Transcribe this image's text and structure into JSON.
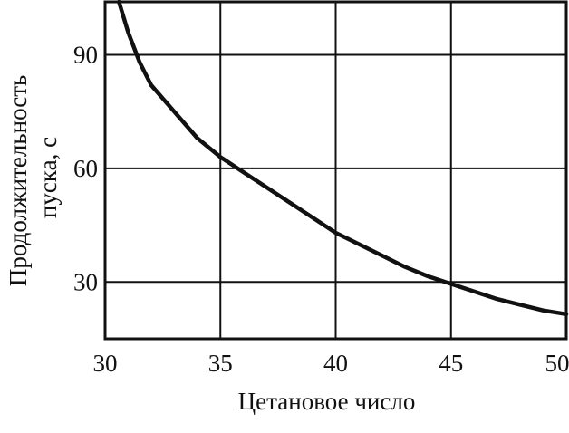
{
  "chart_data": {
    "type": "line",
    "title": "",
    "xlabel": "Цетановое число",
    "ylabel_line1": "Продолжительность",
    "ylabel_line2": "пуска, с",
    "xlim": [
      30,
      50
    ],
    "ylim": [
      15,
      104
    ],
    "x_ticks": [
      30,
      35,
      40,
      45,
      50
    ],
    "y_ticks": [
      30,
      60,
      90
    ],
    "grid": true,
    "series": [
      {
        "x": [
          30.6,
          31.0,
          31.5,
          32.0,
          33.0,
          34.0,
          35.0,
          35.5,
          36.0,
          37.0,
          38.0,
          39.0,
          40.0,
          41.0,
          42.0,
          43.0,
          44.0,
          45.0,
          46.0,
          47.0,
          48.0,
          49.0,
          50.0
        ],
        "y": [
          104,
          96,
          88,
          82,
          75,
          68,
          63,
          61,
          59,
          55,
          51,
          47,
          43,
          40,
          37,
          34,
          31.5,
          29.5,
          27.5,
          25.5,
          24,
          22.5,
          21.5
        ]
      }
    ]
  }
}
